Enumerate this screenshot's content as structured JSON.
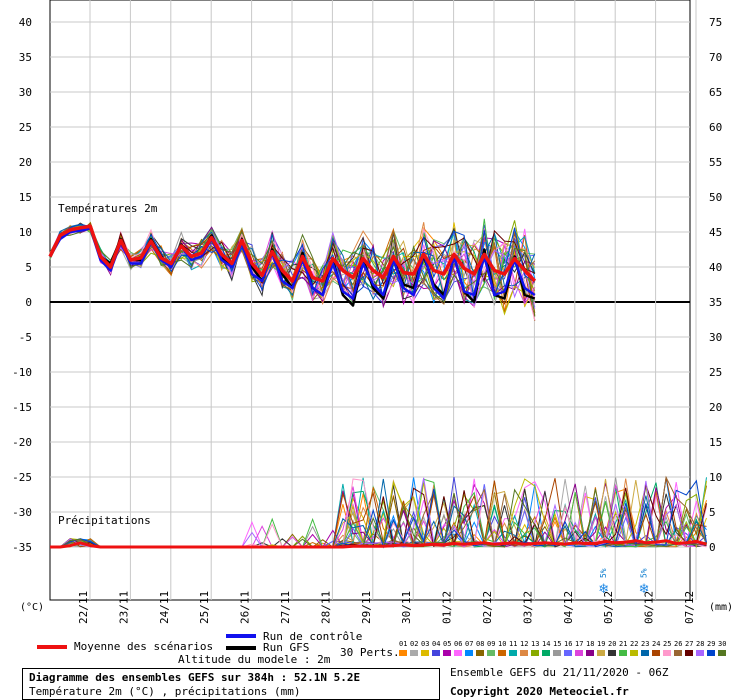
{
  "chart_data": {
    "type": "line",
    "left_axis": {
      "unit_label": "(°C)",
      "ticks": [
        "40",
        "35",
        "30",
        "25",
        "20",
        "15",
        "10",
        "5",
        "0",
        "-5",
        "-10",
        "-15",
        "-20",
        "-25",
        "-30",
        "-35"
      ],
      "ylim": [
        -35,
        40
      ]
    },
    "right_axis": {
      "unit_label": "(mm)",
      "ticks": [
        "75",
        "70",
        "65",
        "60",
        "55",
        "50",
        "45",
        "40",
        "35",
        "30",
        "25",
        "20",
        "15",
        "10",
        "5",
        "0"
      ]
    },
    "x_dates": [
      "22/11",
      "23/11",
      "24/11",
      "25/11",
      "26/11",
      "27/11",
      "28/11",
      "29/11",
      "30/11",
      "01/12",
      "02/12",
      "03/12",
      "04/12",
      "05/12",
      "06/12",
      "07/12"
    ],
    "panel_labels": {
      "temperature": "Températures 2m",
      "precipitation": "Précipitations"
    },
    "snow_markers": [
      {
        "date": "05/12",
        "label": "5%"
      },
      {
        "date": "06/12",
        "label": "5%"
      }
    ],
    "temperature": {
      "mean": [
        6.5,
        9.5,
        10.3,
        10.6,
        10.8,
        6.5,
        5.0,
        8.8,
        6.0,
        6.3,
        8.7,
        6.3,
        5.5,
        8.0,
        6.5,
        7.0,
        9.2,
        6.8,
        5.5,
        8.8,
        5.5,
        3.8,
        7.2,
        4.5,
        3.0,
        6.5,
        3.5,
        3.0,
        6.2,
        4.5,
        3.5,
        6.2,
        4.5,
        3.5,
        6.5,
        4.2,
        4.0,
        6.8,
        4.5,
        4.0,
        6.8,
        4.8,
        4.0,
        6.8,
        4.5,
        4.0,
        6.2,
        4.5,
        3.0
      ],
      "control": [
        6.5,
        9.0,
        10.0,
        10.2,
        10.5,
        6.0,
        4.5,
        8.5,
        5.5,
        5.5,
        8.5,
        6.0,
        5.0,
        8.0,
        6.0,
        6.5,
        9.0,
        6.0,
        5.0,
        8.5,
        4.0,
        3.0,
        7.0,
        3.0,
        2.0,
        6.0,
        2.0,
        1.0,
        5.5,
        1.5,
        0.5,
        5.5,
        2.5,
        1.0,
        6.0,
        2.0,
        1.0,
        7.0,
        2.0,
        0.5,
        6.5,
        1.5,
        1.0,
        6.5,
        1.0,
        1.5,
        6.0,
        2.0,
        1.0
      ],
      "gfs": [
        6.5,
        9.5,
        10.2,
        10.5,
        10.8,
        6.5,
        5.5,
        9.0,
        6.0,
        6.0,
        9.0,
        6.5,
        5.0,
        8.2,
        6.5,
        7.0,
        9.5,
        6.5,
        5.0,
        9.0,
        5.0,
        3.0,
        7.5,
        4.0,
        2.0,
        7.0,
        2.0,
        1.0,
        6.0,
        1.0,
        -0.5,
        6.0,
        2.0,
        0.5,
        6.0,
        2.5,
        2.0,
        6.5,
        2.5,
        1.0,
        6.5,
        1.5,
        0.0,
        7.5,
        1.0,
        0.5,
        6.5,
        1.0,
        0.5
      ]
    },
    "precipitation": {
      "mean": [
        0.0,
        0.0,
        0.2,
        0.6,
        0.2,
        0.0,
        0.0,
        0.0,
        0.0,
        0.0,
        0.0,
        0.0,
        0.0,
        0.0,
        0.0,
        0.0,
        0.0,
        0.0,
        0.0,
        0.0,
        0.0,
        0.0,
        0.0,
        0.0,
        0.0,
        0.0,
        0.0,
        0.0,
        0.0,
        0.0,
        0.1,
        0.1,
        0.1,
        0.1,
        0.2,
        0.3,
        0.2,
        0.3,
        0.4,
        0.3,
        0.5,
        0.4,
        0.5,
        0.6,
        0.4,
        0.5,
        0.6,
        0.4,
        0.5,
        0.6,
        0.5,
        0.4,
        0.6,
        0.5,
        0.5,
        0.8,
        0.6,
        0.7,
        0.9,
        0.6,
        0.7,
        0.9,
        0.5,
        0.6,
        0.8,
        0.4
      ]
    }
  },
  "legend": {
    "mean_label": "Moyenne des scénarios",
    "control_label": "Run de contrôle",
    "gfs_label": "Run GFS",
    "altitude_label": "Altitude du modele : 2m",
    "perts_label": "30 Perts.",
    "pert_numbers": [
      "01",
      "02",
      "03",
      "04",
      "05",
      "06",
      "07",
      "08",
      "09",
      "10",
      "11",
      "12",
      "13",
      "14",
      "15",
      "16",
      "17",
      "18",
      "19",
      "20",
      "21",
      "22",
      "23",
      "24",
      "25",
      "26",
      "27",
      "28",
      "29",
      "30"
    ],
    "colors": {
      "mean": "#ee1111",
      "control": "#1111ee",
      "gfs": "#000000",
      "perts": [
        "#ff8800",
        "#aaaaaa",
        "#ddbb00",
        "#4444dd",
        "#aa00aa",
        "#ff66ff",
        "#0088ff",
        "#886600",
        "#66bb66",
        "#cc6600",
        "#00aaaa",
        "#dd8844",
        "#88aa00",
        "#00aa66",
        "#999999",
        "#6666ff",
        "#dd44dd",
        "#880088",
        "#ccaa44",
        "#333333",
        "#44bb44",
        "#bbbb00",
        "#0066aa",
        "#aa4400",
        "#ff99cc",
        "#996633",
        "#660000",
        "#aa66ff",
        "#0044cc",
        "#557722"
      ]
    }
  },
  "footer": {
    "title": "Diagramme des ensembles GEFS sur 384h : 52.1N 5.2E",
    "subtitle": "Température 2m (°C) , précipitations (mm)",
    "run_info": "Ensemble GEFS du 21/11/2020 - 06Z",
    "copyright": "Copyright 2020 Meteociel.fr"
  }
}
